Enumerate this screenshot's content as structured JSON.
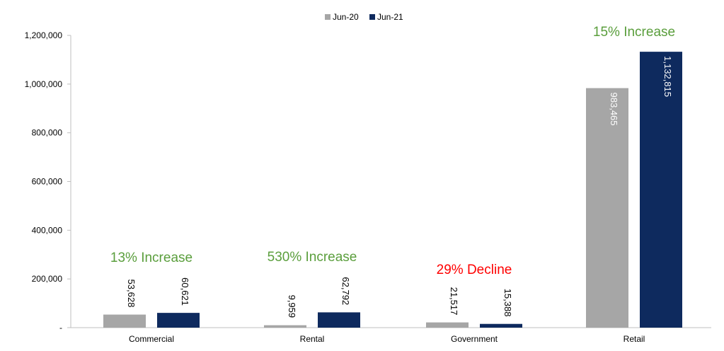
{
  "chart_data": {
    "type": "bar",
    "categories": [
      "Commercial",
      "Rental",
      "Government",
      "Retail"
    ],
    "series": [
      {
        "name": "Jun-20",
        "color": "#a6a6a6",
        "values": [
          53628,
          9959,
          21517,
          983465
        ]
      },
      {
        "name": "Jun-21",
        "color": "#0e2a5e",
        "values": [
          60621,
          62792,
          15388,
          1132815
        ]
      }
    ],
    "data_labels": [
      [
        "53,628",
        "9,959",
        "21,517",
        "983,465"
      ],
      [
        "60,621",
        "62,792",
        "15,388",
        "1,132,815"
      ]
    ],
    "annotations": [
      {
        "category": "Commercial",
        "text": "13% Increase",
        "color": "#5a9e3c"
      },
      {
        "category": "Rental",
        "text": "530% Increase",
        "color": "#5a9e3c"
      },
      {
        "category": "Government",
        "text": "29% Decline",
        "color": "#ff0000"
      },
      {
        "category": "Retail",
        "text": "15% Increase",
        "color": "#5a9e3c"
      }
    ],
    "yticks": [
      0,
      200000,
      400000,
      600000,
      800000,
      1000000,
      1200000
    ],
    "ytick_labels": [
      "-",
      "200,000",
      "400,000",
      "600,000",
      "800,000",
      "1,000,000",
      "1,200,000"
    ],
    "ylim": [
      0,
      1200000
    ],
    "grid": false,
    "legend": "top-center",
    "title": "",
    "xlabel": "",
    "ylabel": ""
  }
}
